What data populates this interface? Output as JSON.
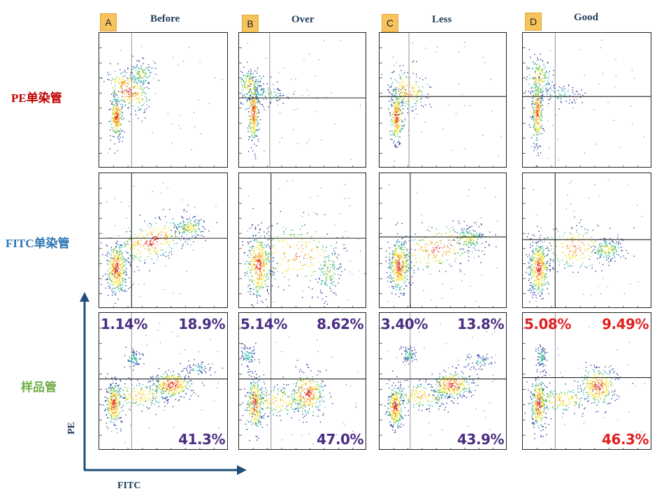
{
  "columns": [
    {
      "letter": "A",
      "title": "Before"
    },
    {
      "letter": "B",
      "title": "Over"
    },
    {
      "letter": "C",
      "title": "Less"
    },
    {
      "letter": "D",
      "title": "Good"
    }
  ],
  "rows": [
    {
      "label": "PE单染管",
      "color": "#c00000"
    },
    {
      "label": "FITC单染管",
      "color": "#2e75b6"
    },
    {
      "label": "样品管",
      "color": "#70ad47"
    }
  ],
  "sample_percentages": [
    {
      "upper_left": "1.14%",
      "upper_right": "18.9%",
      "lower_right": "41.3%",
      "color": "#4b2e83"
    },
    {
      "upper_left": "5.14%",
      "upper_right": "8.62%",
      "lower_right": "47.0%",
      "color": "#4b2e83"
    },
    {
      "upper_left": "3.40%",
      "upper_right": "13.8%",
      "lower_right": "43.9%",
      "color": "#4b2e83"
    },
    {
      "upper_left": "5.08%",
      "upper_right": "9.49%",
      "lower_right": "46.3%",
      "color": "#e02020"
    }
  ],
  "axes": {
    "y_label": "PE",
    "x_label": "FITC",
    "arrow_color": "#1f4e79"
  }
}
